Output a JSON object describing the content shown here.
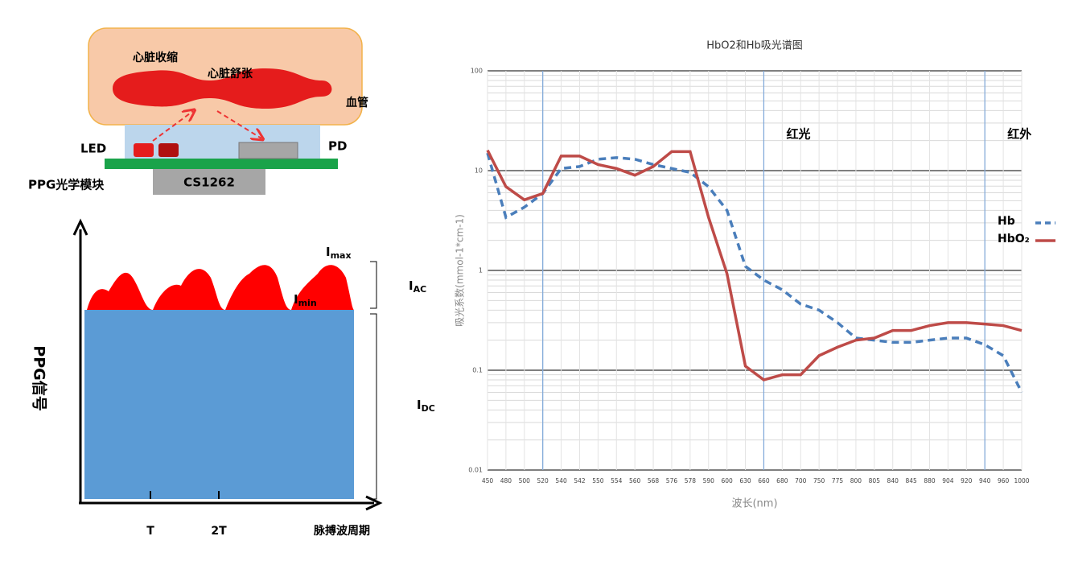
{
  "diagram": {
    "systole": "心脏收缩",
    "diastole": "心脏舒张",
    "vessel": "血管",
    "led": "LED",
    "pd": "PD",
    "module": "PPG光学模块",
    "chip": "CS1262",
    "imax": {
      "symbol": "I",
      "sub": "max"
    },
    "imin": {
      "symbol": "I",
      "sub": "min"
    },
    "iac": {
      "symbol": "I",
      "sub": "AC"
    },
    "idc": {
      "symbol": "I",
      "sub": "DC"
    },
    "y_label": "PPG信号",
    "x_ticks": [
      "T",
      "2T"
    ],
    "x_label": "脉搏波周期"
  },
  "chart_data": {
    "type": "line",
    "title": "HbO2和Hb吸光谱图",
    "x_label": "波长(nm)",
    "y_label": "吸光系数(mmol-1*cm-1)",
    "categories": [
      450,
      480,
      500,
      520,
      540,
      542,
      550,
      554,
      560,
      568,
      576,
      578,
      590,
      600,
      630,
      660,
      680,
      700,
      750,
      775,
      800,
      805,
      840,
      845,
      880,
      904,
      920,
      940,
      960,
      1000
    ],
    "log_y": true,
    "ylim": [
      0.01,
      100
    ],
    "yticks": [
      0.01,
      0.1,
      1,
      10,
      100
    ],
    "grid": true,
    "vlines": [
      520,
      660,
      940
    ],
    "annotations": [
      {
        "text": "红光",
        "x": 660
      },
      {
        "text": "红外",
        "x": 940
      }
    ],
    "series": [
      {
        "name": "Hb",
        "color": "#4a7ebb",
        "dash": true,
        "values": [
          15,
          3.4,
          4.3,
          5.9,
          10.5,
          11,
          13,
          13.5,
          13,
          11.5,
          10.5,
          9.6,
          6.9,
          4,
          1.1,
          0.8,
          0.64,
          0.46,
          0.4,
          0.3,
          0.21,
          0.2,
          0.19,
          0.19,
          0.2,
          0.21,
          0.21,
          0.18,
          0.14,
          0.06
        ]
      },
      {
        "name": "HbO₂",
        "color": "#be4b48",
        "dash": false,
        "values": [
          16,
          6.9,
          5.1,
          5.9,
          14,
          14,
          11.5,
          10.5,
          9,
          11,
          15.5,
          15.5,
          3.4,
          0.93,
          0.11,
          0.08,
          0.09,
          0.09,
          0.14,
          0.17,
          0.2,
          0.21,
          0.25,
          0.25,
          0.28,
          0.3,
          0.3,
          0.29,
          0.28,
          0.25
        ]
      }
    ]
  }
}
